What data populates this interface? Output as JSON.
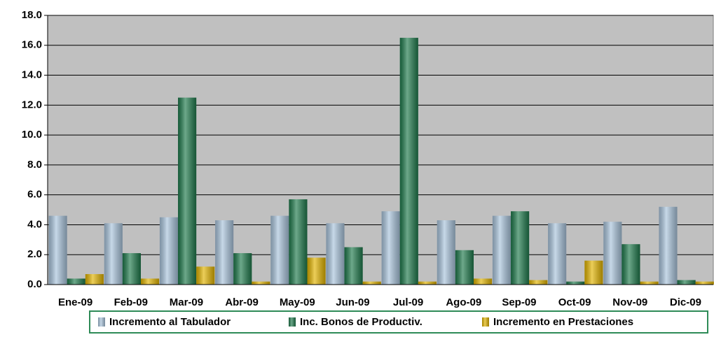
{
  "chart_data": {
    "type": "bar",
    "categories": [
      "Ene-09",
      "Feb-09",
      "Mar-09",
      "Abr-09",
      "May-09",
      "Jun-09",
      "Jul-09",
      "Ago-09",
      "Sep-09",
      "Oct-09",
      "Nov-09",
      "Dic-09"
    ],
    "series": [
      {
        "name": "Incremento al Tabulador",
        "color": "#a9c4dc",
        "values": [
          4.6,
          4.1,
          4.5,
          4.3,
          4.6,
          4.1,
          4.9,
          4.3,
          4.6,
          4.1,
          4.2,
          5.2
        ]
      },
      {
        "name": "Inc. Bonos de Productiv.",
        "color": "#1f7a4c",
        "values": [
          0.4,
          2.1,
          12.5,
          2.1,
          5.7,
          2.5,
          16.5,
          2.3,
          4.9,
          0.2,
          2.7,
          0.3
        ]
      },
      {
        "name": "Incremento en Prestaciones",
        "color": "#e2b400",
        "values": [
          0.7,
          0.4,
          1.2,
          0.2,
          1.8,
          0.2,
          0.2,
          0.4,
          0.3,
          1.6,
          0.2,
          0.2
        ]
      }
    ],
    "ylim": [
      0,
      18
    ],
    "yticks": [
      {
        "value": 0,
        "label": "0.0"
      },
      {
        "value": 2,
        "label": "2.0"
      },
      {
        "value": 4,
        "label": "4.0"
      },
      {
        "value": 6,
        "label": "6.0"
      },
      {
        "value": 8,
        "label": "8.0"
      },
      {
        "value": 10,
        "label": "10.0"
      },
      {
        "value": 12,
        "label": "12.0"
      },
      {
        "value": 14,
        "label": "14.0"
      },
      {
        "value": 16,
        "label": "16.0"
      },
      {
        "value": 18,
        "label": "18.0"
      }
    ],
    "grid": true,
    "plot_background": "#c0c0c0",
    "legend": "bottom"
  }
}
